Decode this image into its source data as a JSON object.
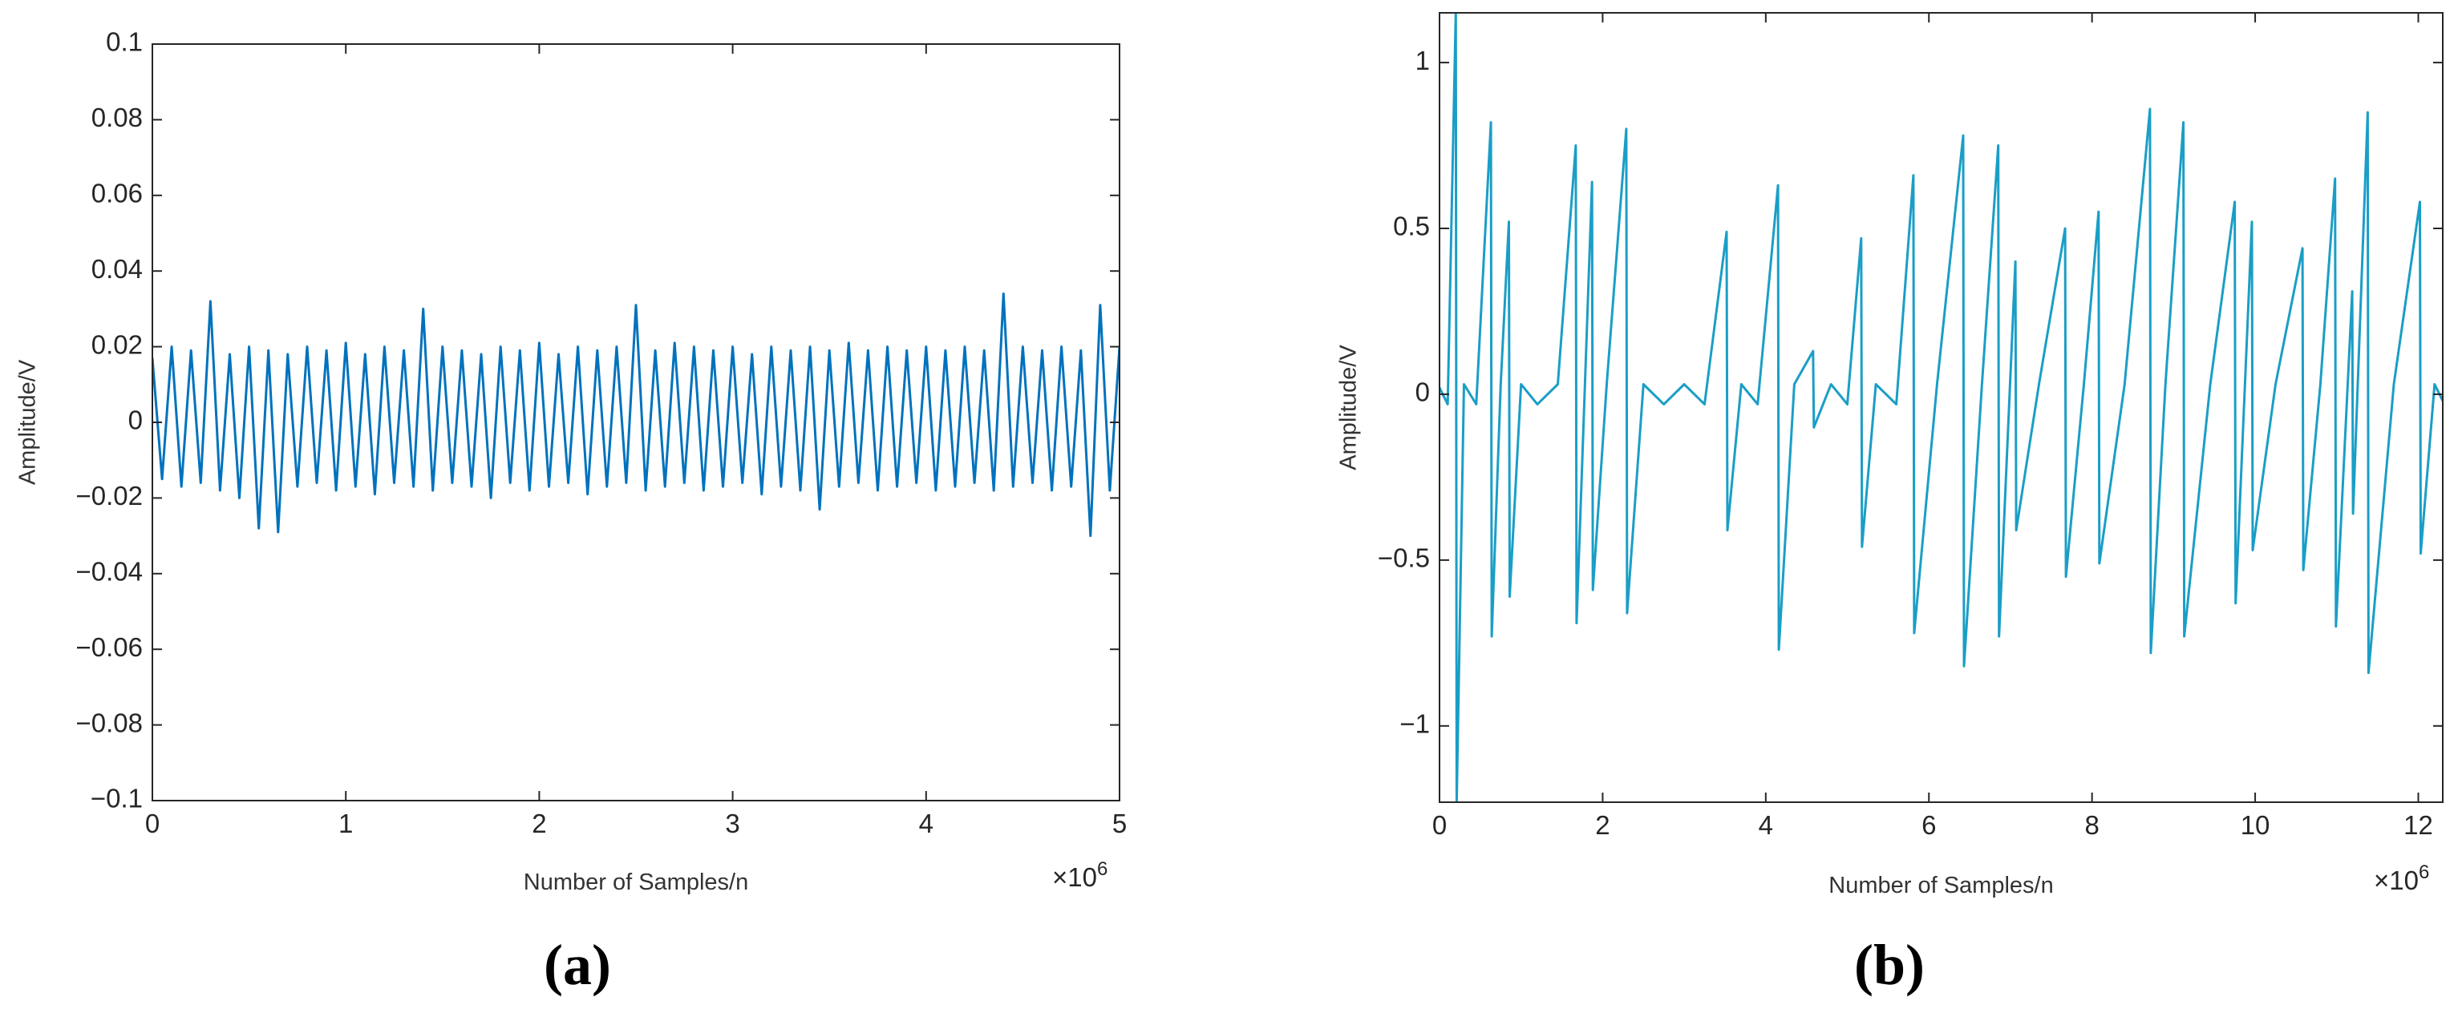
{
  "chart_data": [
    {
      "type": "line",
      "panel_label": "(a)",
      "xlabel": "Number of Samples/n",
      "ylabel": "Amplitude/V",
      "x_exponent": {
        "base": "×10",
        "exponent": "6"
      },
      "color": "#0072bd",
      "xlim": [
        0,
        5
      ],
      "xticks": [
        0,
        1,
        2,
        3,
        4,
        5
      ],
      "ylim": [
        -0.1,
        0.1
      ],
      "yticks": [
        {
          "value": -0.1,
          "label": "−0.1"
        },
        {
          "value": -0.08,
          "label": "−0.08"
        },
        {
          "value": -0.06,
          "label": "−0.06"
        },
        {
          "value": -0.04,
          "label": "−0.04"
        },
        {
          "value": -0.02,
          "label": "−0.02"
        },
        0,
        0.02,
        0.04,
        0.06,
        0.08,
        0.1
      ],
      "x": [
        0,
        0.05,
        0.1,
        0.15,
        0.2,
        0.25,
        0.3,
        0.35,
        0.4,
        0.45,
        0.5,
        0.55,
        0.6,
        0.65,
        0.7,
        0.75,
        0.8,
        0.85,
        0.9,
        0.95,
        1,
        1.05,
        1.1,
        1.15,
        1.2,
        1.25,
        1.3,
        1.35,
        1.4,
        1.45,
        1.5,
        1.55,
        1.6,
        1.65,
        1.7,
        1.75,
        1.8,
        1.85,
        1.9,
        1.95,
        2,
        2.05,
        2.1,
        2.15,
        2.2,
        2.25,
        2.3,
        2.35,
        2.4,
        2.45,
        2.5,
        2.55,
        2.6,
        2.65,
        2.7,
        2.75,
        2.8,
        2.85,
        2.9,
        2.95,
        3,
        3.05,
        3.1,
        3.15,
        3.2,
        3.25,
        3.3,
        3.35,
        3.4,
        3.45,
        3.5,
        3.55,
        3.6,
        3.65,
        3.7,
        3.75,
        3.8,
        3.85,
        3.9,
        3.95,
        4,
        4.05,
        4.1,
        4.15,
        4.2,
        4.25,
        4.3,
        4.35,
        4.4,
        4.45,
        4.5,
        4.55,
        4.6,
        4.65,
        4.7,
        4.75,
        4.8,
        4.85,
        4.9,
        4.95,
        5
      ],
      "values": [
        0.017,
        -0.015,
        0.02,
        -0.017,
        0.019,
        -0.016,
        0.032,
        -0.018,
        0.018,
        -0.02,
        0.02,
        -0.028,
        0.019,
        -0.029,
        0.018,
        -0.017,
        0.02,
        -0.016,
        0.019,
        -0.018,
        0.021,
        -0.017,
        0.018,
        -0.019,
        0.02,
        -0.016,
        0.019,
        -0.017,
        0.03,
        -0.018,
        0.02,
        -0.016,
        0.019,
        -0.017,
        0.018,
        -0.02,
        0.02,
        -0.016,
        0.019,
        -0.018,
        0.021,
        -0.017,
        0.018,
        -0.016,
        0.02,
        -0.019,
        0.019,
        -0.017,
        0.02,
        -0.016,
        0.031,
        -0.018,
        0.019,
        -0.017,
        0.021,
        -0.016,
        0.02,
        -0.018,
        0.019,
        -0.017,
        0.02,
        -0.016,
        0.018,
        -0.019,
        0.02,
        -0.017,
        0.019,
        -0.018,
        0.02,
        -0.023,
        0.019,
        -0.017,
        0.021,
        -0.016,
        0.019,
        -0.018,
        0.02,
        -0.017,
        0.019,
        -0.016,
        0.02,
        -0.018,
        0.019,
        -0.017,
        0.02,
        -0.016,
        0.019,
        -0.018,
        0.034,
        -0.017,
        0.02,
        -0.016,
        0.019,
        -0.018,
        0.02,
        -0.017,
        0.019,
        -0.03,
        0.031,
        -0.018,
        0.02
      ]
    },
    {
      "type": "line",
      "panel_label": "(b)",
      "xlabel": "Number of Samples/n",
      "ylabel": "Amplitude/V",
      "x_exponent": {
        "base": "×10",
        "exponent": "6"
      },
      "color": "#1a9ec6",
      "xlim": [
        0,
        12.3
      ],
      "xticks": [
        0,
        2,
        4,
        6,
        8,
        10,
        12
      ],
      "ylim": [
        -1.23,
        1.15
      ],
      "yticks": [
        {
          "value": -1,
          "label": "−1"
        },
        {
          "value": -0.5,
          "label": "−0.5"
        },
        0,
        0.5,
        1
      ],
      "x": [
        0,
        0.1,
        0.2,
        0.21,
        0.3,
        0.45,
        0.63,
        0.64,
        0.75,
        0.85,
        0.86,
        1,
        1.2,
        1.45,
        1.67,
        1.68,
        1.87,
        1.88,
        2.05,
        2.29,
        2.3,
        2.5,
        2.75,
        3,
        3.25,
        3.52,
        3.53,
        3.7,
        3.9,
        4.15,
        4.16,
        4.35,
        4.58,
        4.59,
        4.8,
        5,
        5.17,
        5.18,
        5.35,
        5.6,
        5.81,
        5.82,
        6.1,
        6.42,
        6.43,
        6.65,
        6.85,
        6.86,
        7.06,
        7.07,
        7.35,
        7.67,
        7.68,
        7.9,
        8.08,
        8.09,
        8.4,
        8.71,
        8.72,
        8.9,
        9.12,
        9.13,
        9.45,
        9.75,
        9.76,
        9.96,
        9.97,
        10.25,
        10.58,
        10.59,
        10.8,
        10.98,
        10.99,
        11.19,
        11.2,
        11.38,
        11.39,
        11.7,
        12.02,
        12.03,
        12.2,
        12.3
      ],
      "values": [
        0.02,
        -0.03,
        1.15,
        -1.23,
        0.03,
        -0.03,
        0.82,
        -0.73,
        0.03,
        0.52,
        -0.61,
        0.03,
        -0.03,
        0.03,
        0.75,
        -0.69,
        0.64,
        -0.59,
        0.03,
        0.8,
        -0.66,
        0.03,
        -0.03,
        0.03,
        -0.03,
        0.49,
        -0.41,
        0.03,
        -0.03,
        0.63,
        -0.77,
        0.03,
        0.13,
        -0.1,
        0.03,
        -0.03,
        0.47,
        -0.46,
        0.03,
        -0.03,
        0.66,
        -0.72,
        0.03,
        0.78,
        -0.82,
        0.03,
        0.75,
        -0.73,
        0.4,
        -0.41,
        0.03,
        0.5,
        -0.55,
        0.03,
        0.55,
        -0.51,
        0.03,
        0.86,
        -0.78,
        0.03,
        0.82,
        -0.73,
        0.03,
        0.58,
        -0.63,
        0.52,
        -0.47,
        0.03,
        0.44,
        -0.53,
        0.03,
        0.65,
        -0.7,
        0.31,
        -0.36,
        0.85,
        -0.84,
        0.03,
        0.58,
        -0.48,
        0.03,
        -0.02
      ]
    }
  ]
}
